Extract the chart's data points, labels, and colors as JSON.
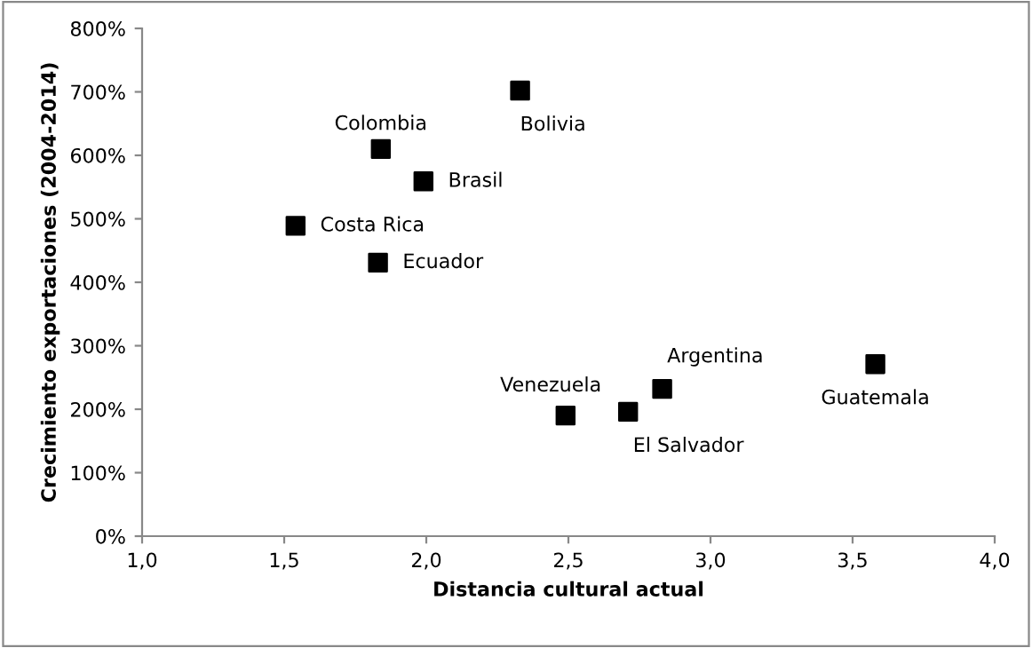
{
  "chart_data": {
    "type": "scatter",
    "xlabel": "Distancia cultural actual",
    "ylabel": "Crecimiento exportaciones (2004-2014)",
    "x": [
      2.33,
      1.84,
      1.99,
      1.54,
      1.83,
      2.49,
      2.71,
      2.83,
      3.58
    ],
    "series": [
      {
        "color": "#000000",
        "values": [
          702,
          610,
          559,
          489,
          431,
          190,
          196,
          232,
          271
        ]
      }
    ],
    "marker": "square",
    "grid": false,
    "legend": false,
    "xlim": [
      1.0,
      4.0
    ],
    "xticks": [
      {
        "value": 1.0,
        "label": "1,0"
      },
      {
        "value": 1.5,
        "label": "1,5"
      },
      {
        "value": 2.0,
        "label": "2,0"
      },
      {
        "value": 2.5,
        "label": "2,5"
      },
      {
        "value": 3.0,
        "label": "3,0"
      },
      {
        "value": 3.5,
        "label": "3,5"
      },
      {
        "value": 4.0,
        "label": "4,0"
      }
    ],
    "ylim": [
      0,
      800
    ],
    "yticks": [
      {
        "value": 0,
        "label": "0%"
      },
      {
        "value": 100,
        "label": "100%"
      },
      {
        "value": 200,
        "label": "200%"
      },
      {
        "value": 300,
        "label": "300%"
      },
      {
        "value": 400,
        "label": "400%"
      },
      {
        "value": 500,
        "label": "500%"
      },
      {
        "value": 600,
        "label": "600%"
      },
      {
        "value": 700,
        "label": "700%"
      },
      {
        "value": 800,
        "label": "800%"
      }
    ],
    "annotations": [
      {
        "text": "Bolivia",
        "x": 2.33,
        "y": 702
      },
      {
        "text": "Colombia",
        "x": 1.84,
        "y": 610
      },
      {
        "text": "Brasil",
        "x": 1.99,
        "y": 559
      },
      {
        "text": "Costa Rica",
        "x": 1.54,
        "y": 489
      },
      {
        "text": "Ecuador",
        "x": 1.83,
        "y": 431
      },
      {
        "text": "Venezuela",
        "x": 2.49,
        "y": 190
      },
      {
        "text": "El Salvador",
        "x": 2.71,
        "y": 196
      },
      {
        "text": "Argentina",
        "x": 2.83,
        "y": 232
      },
      {
        "text": "Guatemala",
        "x": 3.58,
        "y": 271
      }
    ]
  }
}
